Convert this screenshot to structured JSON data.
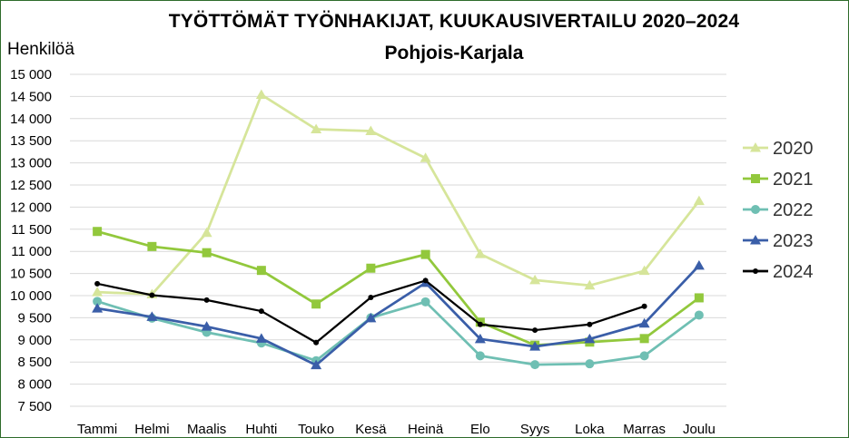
{
  "chart_data": {
    "type": "line",
    "title": "TYÖTTÖMÄT TYÖNHAKIJAT, KUUKAUSIVERTAILU 2020–2024",
    "subtitle": "Pohjois-Karjala",
    "ylabel": "Henkilöä",
    "xlabel": "",
    "ylim": [
      7500,
      15000
    ],
    "yticks": [
      {
        "value": 7500,
        "label": "7 500"
      },
      {
        "value": 8000,
        "label": "8 000"
      },
      {
        "value": 8500,
        "label": "8 500"
      },
      {
        "value": 9000,
        "label": "9 000"
      },
      {
        "value": 9500,
        "label": "9 500"
      },
      {
        "value": 10000,
        "label": "10 000"
      },
      {
        "value": 10500,
        "label": "10 500"
      },
      {
        "value": 11000,
        "label": "11 000"
      },
      {
        "value": 11500,
        "label": "11 500"
      },
      {
        "value": 12000,
        "label": "12 000"
      },
      {
        "value": 12500,
        "label": "12 500"
      },
      {
        "value": 13000,
        "label": "13 000"
      },
      {
        "value": 13500,
        "label": "13 500"
      },
      {
        "value": 14000,
        "label": "14 000"
      },
      {
        "value": 14500,
        "label": "14 500"
      },
      {
        "value": 15000,
        "label": "15 000"
      }
    ],
    "categories": [
      "Tammi",
      "Helmi",
      "Maalis",
      "Huhti",
      "Touko",
      "Kesä",
      "Heinä",
      "Elo",
      "Syys",
      "Loka",
      "Marras",
      "Joulu"
    ],
    "grid": "horizontal",
    "legend_position": "right",
    "series": [
      {
        "name": "2020",
        "color": "#d6e59a",
        "marker": "triangle",
        "values": [
          10080,
          10030,
          11420,
          14540,
          13760,
          13720,
          13110,
          10940,
          10350,
          10230,
          10560,
          12140
        ]
      },
      {
        "name": "2021",
        "color": "#92c83c",
        "marker": "square",
        "values": [
          11450,
          11110,
          10970,
          10570,
          9810,
          10620,
          10930,
          9400,
          8880,
          8950,
          9030,
          9950
        ]
      },
      {
        "name": "2022",
        "color": "#6fbfb3",
        "marker": "circle",
        "values": [
          9870,
          9490,
          9170,
          8930,
          8530,
          9500,
          9860,
          8640,
          8440,
          8460,
          8640,
          9560
        ]
      },
      {
        "name": "2023",
        "color": "#3a5ea8",
        "marker": "triangle",
        "values": [
          9710,
          9520,
          9300,
          9030,
          8430,
          9490,
          10290,
          9020,
          8850,
          9020,
          9370,
          10680
        ]
      },
      {
        "name": "2024",
        "color": "#000000",
        "marker": "dot",
        "values": [
          10270,
          10010,
          9900,
          9650,
          8940,
          9960,
          10340,
          9350,
          9220,
          9350,
          9760,
          null
        ]
      }
    ]
  }
}
